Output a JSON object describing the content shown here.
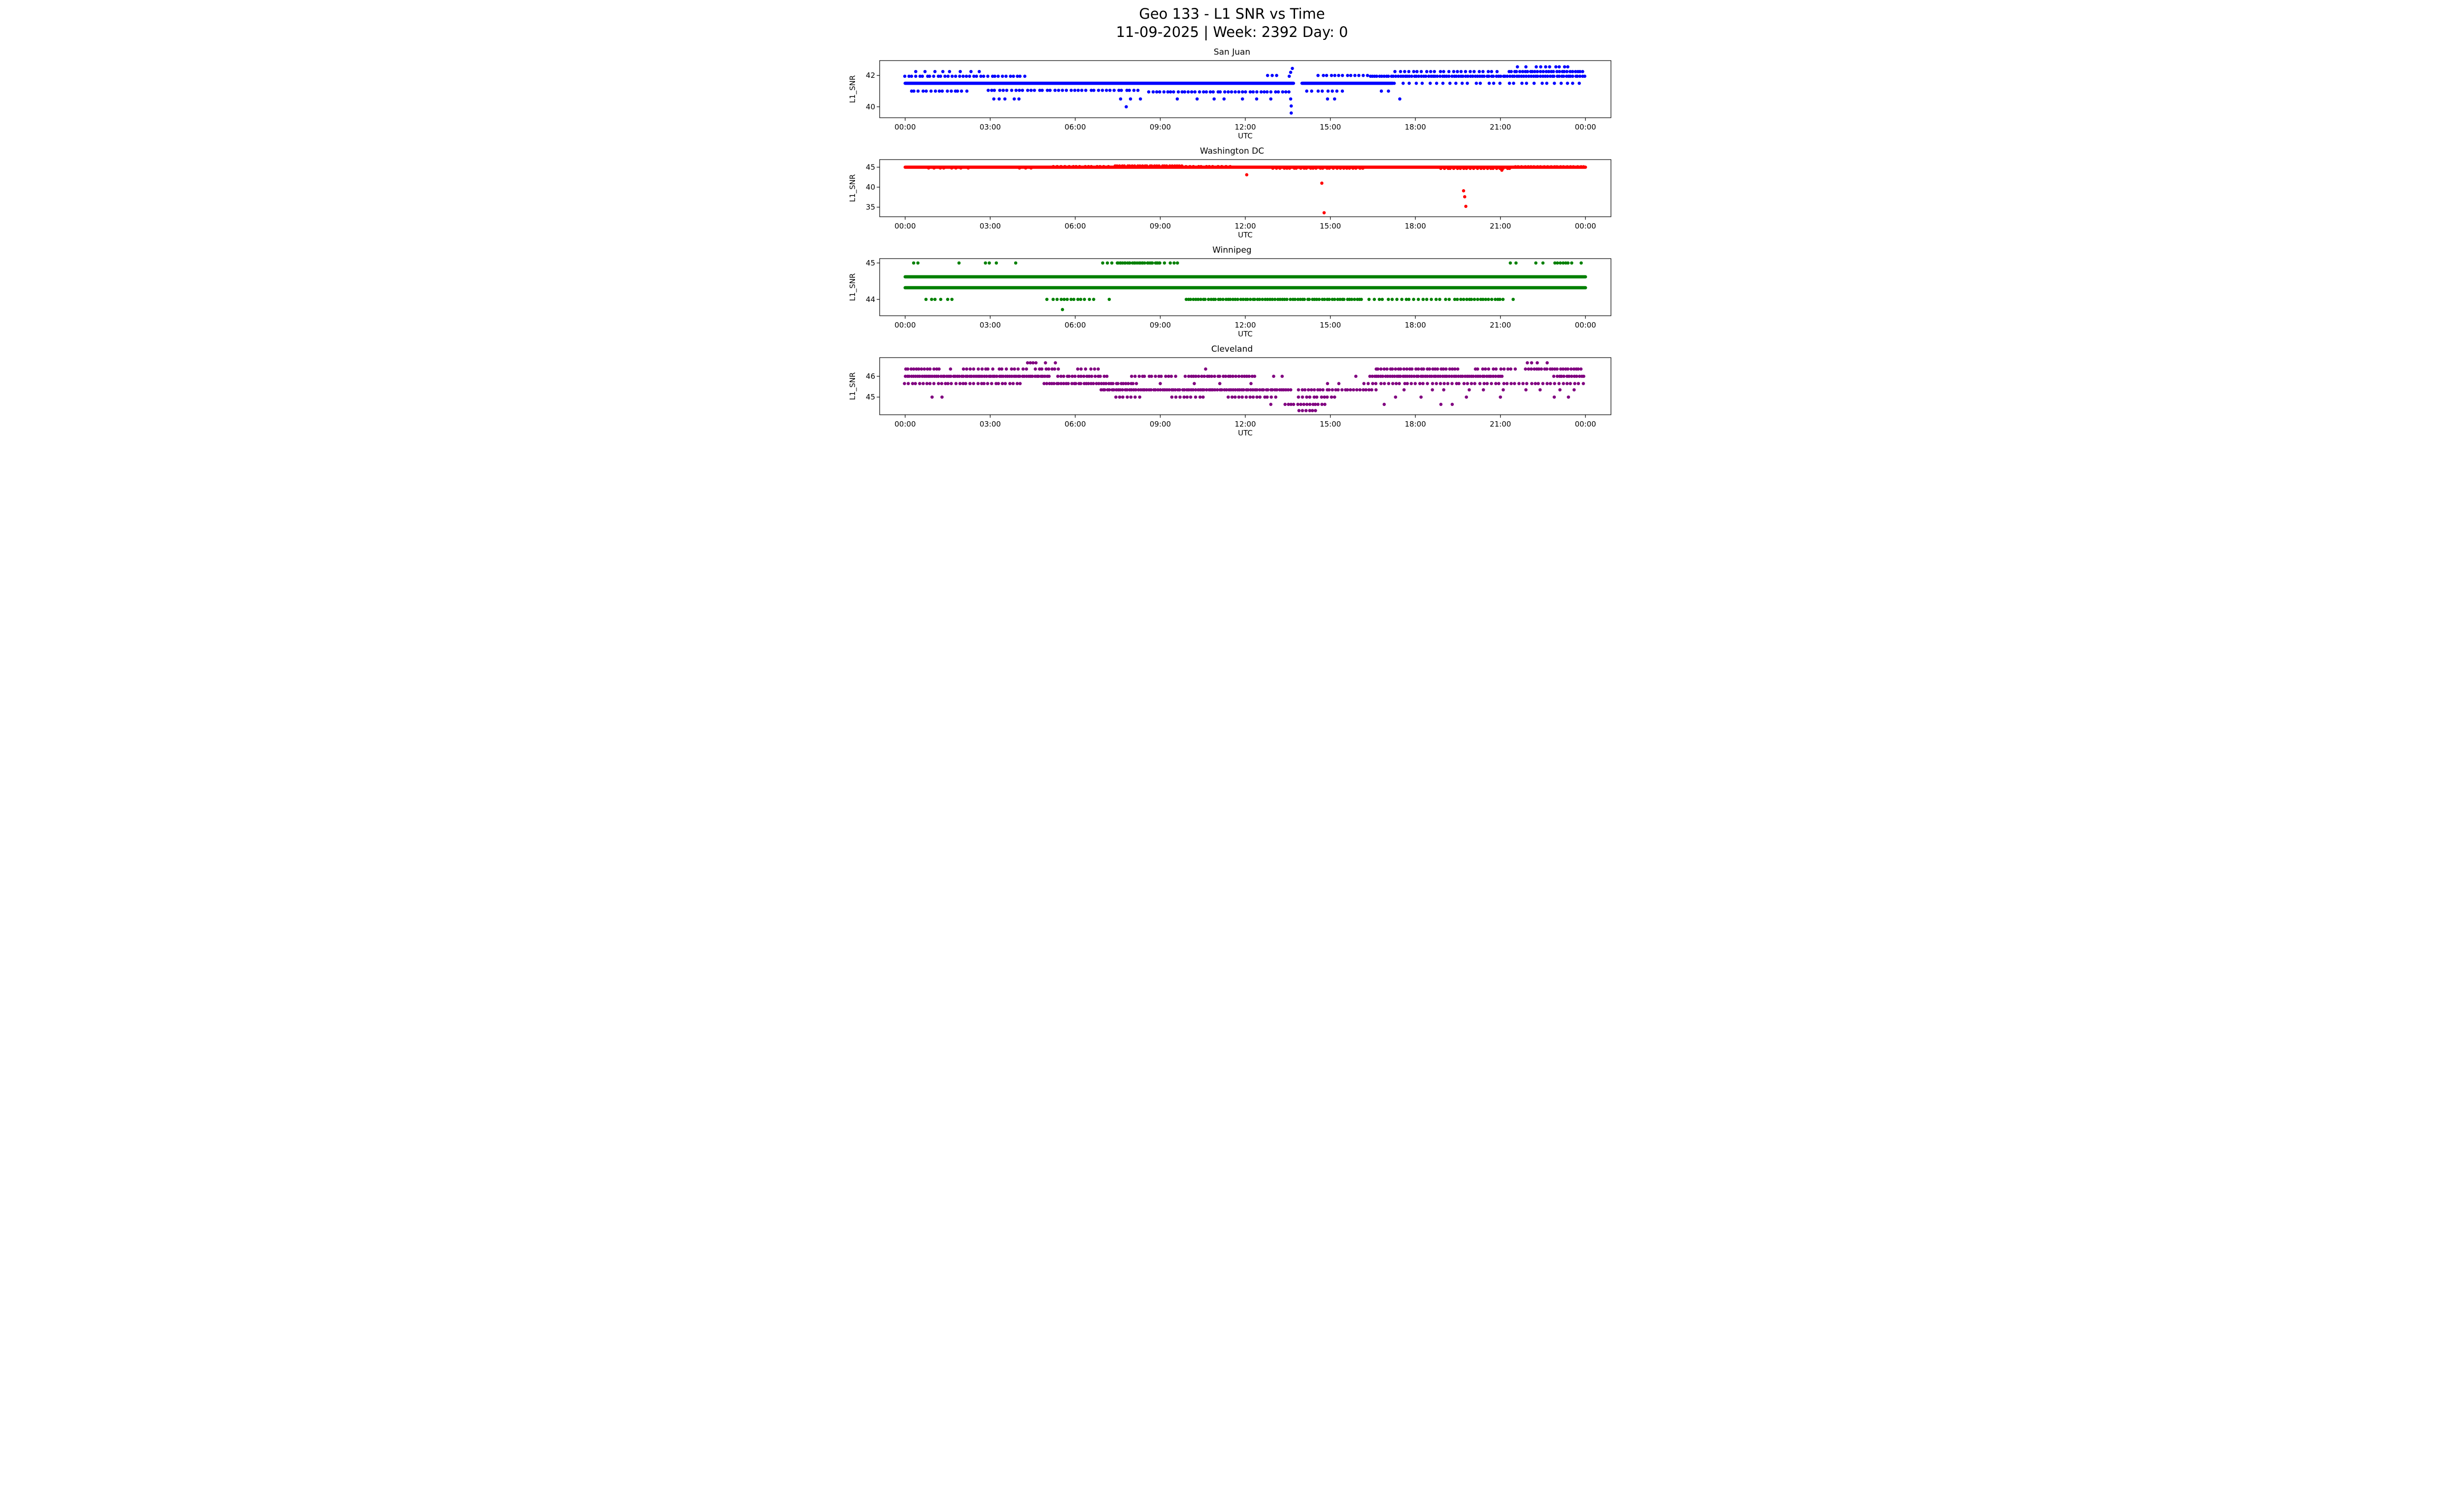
{
  "figure": {
    "title_line1": "Geo 133 - L1 SNR vs Time",
    "title_line2": "11-09-2025 | Week: 2392 Day: 0"
  },
  "chart_data": [
    {
      "type": "scatter",
      "title": "San Juan",
      "color": "#0000ff",
      "xlabel": "UTC",
      "ylabel": "L1_SNR",
      "xlim": [
        -0.9,
        24.9
      ],
      "ylim": [
        39.3,
        42.95
      ],
      "xticks": [
        0,
        3,
        6,
        9,
        12,
        15,
        18,
        21,
        24
      ],
      "xtick_labels": [
        "00:00",
        "03:00",
        "06:00",
        "09:00",
        "12:00",
        "15:00",
        "18:00",
        "21:00",
        "00:00"
      ],
      "yticks": [
        40,
        42
      ],
      "ytick_labels": [
        "40",
        "42"
      ],
      "segments": [
        [
          0.0,
          13.7,
          41.5,
          1
        ],
        [
          14.0,
          17.2,
          41.5,
          1
        ],
        [
          17.3,
          24.0,
          41.5,
          0.3
        ],
        [
          0.0,
          4.3,
          41.95,
          0.55
        ],
        [
          0.35,
          2.6,
          42.25,
          0.22
        ],
        [
          0.2,
          2.2,
          41.0,
          0.5
        ],
        [
          2.9,
          8.3,
          41.05,
          0.5
        ],
        [
          8.6,
          13.6,
          40.95,
          0.55
        ],
        [
          14.2,
          15.6,
          41.0,
          0.4
        ],
        [
          3.1,
          4.2,
          40.5,
          0.3
        ],
        [
          12.75,
          13.15,
          42.0,
          0.35
        ],
        [
          14.6,
          16.4,
          42.0,
          0.5
        ],
        [
          16.4,
          24.0,
          41.95,
          0.85
        ],
        [
          17.3,
          21.0,
          42.25,
          0.45
        ],
        [
          21.3,
          24.0,
          42.25,
          0.75
        ],
        [
          22.3,
          23.4,
          42.55,
          0.45
        ]
      ],
      "points": [
        [
          7.6,
          40.5
        ],
        [
          7.95,
          40.5
        ],
        [
          8.3,
          40.5
        ],
        [
          9.6,
          40.5
        ],
        [
          10.3,
          40.5
        ],
        [
          10.9,
          40.5
        ],
        [
          11.25,
          40.5
        ],
        [
          11.9,
          40.5
        ],
        [
          12.4,
          40.5
        ],
        [
          12.9,
          40.5
        ],
        [
          13.6,
          40.5
        ],
        [
          14.9,
          40.5
        ],
        [
          15.15,
          40.5
        ],
        [
          17.45,
          40.5
        ],
        [
          7.8,
          40.0
        ],
        [
          13.62,
          40.05
        ],
        [
          13.62,
          39.6
        ],
        [
          13.6,
          42.2
        ],
        [
          13.66,
          42.45
        ],
        [
          13.55,
          41.95
        ],
        [
          16.8,
          41.0
        ],
        [
          17.05,
          41.0
        ],
        [
          21.6,
          42.55
        ],
        [
          21.9,
          42.55
        ]
      ]
    },
    {
      "type": "scatter",
      "title": "Washington DC",
      "color": "#ff0000",
      "xlabel": "UTC",
      "ylabel": "L1_SNR",
      "xlim": [
        -0.9,
        24.9
      ],
      "ylim": [
        32.6,
        46.9
      ],
      "xticks": [
        0,
        3,
        6,
        9,
        12,
        15,
        18,
        21,
        24
      ],
      "xtick_labels": [
        "00:00",
        "03:00",
        "06:00",
        "09:00",
        "12:00",
        "15:00",
        "18:00",
        "21:00",
        "00:00"
      ],
      "yticks": [
        35,
        40,
        45
      ],
      "ytick_labels": [
        "35",
        "40",
        "45"
      ],
      "segments": [
        [
          0.0,
          24.0,
          45.0,
          1
        ],
        [
          7.4,
          9.8,
          45.3,
          0.8
        ],
        [
          5.2,
          7.2,
          45.15,
          0.5
        ],
        [
          9.9,
          11.5,
          45.15,
          0.5
        ],
        [
          13.0,
          16.2,
          44.75,
          0.6
        ],
        [
          18.9,
          21.4,
          44.7,
          0.6
        ],
        [
          0.8,
          2.3,
          44.8,
          0.35
        ],
        [
          4.0,
          4.6,
          44.8,
          0.3
        ],
        [
          21.5,
          24.0,
          45.1,
          0.6
        ]
      ],
      "points": [
        [
          12.05,
          43.1
        ],
        [
          14.7,
          41.0
        ],
        [
          14.78,
          33.6
        ],
        [
          19.7,
          39.1
        ],
        [
          19.74,
          37.6
        ],
        [
          19.78,
          35.2
        ],
        [
          21.05,
          44.25
        ]
      ]
    },
    {
      "type": "scatter",
      "title": "Winnipeg",
      "color": "#008000",
      "xlabel": "UTC",
      "ylabel": "L1_SNR",
      "xlim": [
        -0.9,
        24.9
      ],
      "ylim": [
        43.55,
        45.12
      ],
      "xticks": [
        0,
        3,
        6,
        9,
        12,
        15,
        18,
        21,
        24
      ],
      "xtick_labels": [
        "00:00",
        "03:00",
        "06:00",
        "09:00",
        "12:00",
        "15:00",
        "18:00",
        "21:00",
        "00:00"
      ],
      "yticks": [
        44,
        45
      ],
      "ytick_labels": [
        "44",
        "45"
      ],
      "segments": [
        [
          0.0,
          24.0,
          44.62,
          1
        ],
        [
          0.0,
          24.0,
          44.32,
          1
        ],
        [
          7.0,
          9.7,
          45.0,
          0.45
        ],
        [
          7.5,
          9.0,
          45.0,
          0.8
        ],
        [
          22.9,
          23.6,
          45.0,
          0.7
        ],
        [
          2.8,
          3.35,
          45.0,
          0.35
        ],
        [
          0.75,
          1.25,
          44.0,
          0.45
        ],
        [
          5.25,
          6.3,
          44.0,
          0.6
        ],
        [
          9.9,
          16.2,
          44.0,
          0.8
        ],
        [
          16.4,
          19.2,
          44.0,
          0.45
        ],
        [
          19.4,
          21.2,
          44.0,
          0.7
        ]
      ],
      "points": [
        [
          0.3,
          45.0
        ],
        [
          0.45,
          45.0
        ],
        [
          1.9,
          45.0
        ],
        [
          3.9,
          45.0
        ],
        [
          21.35,
          45.0
        ],
        [
          21.55,
          45.0
        ],
        [
          22.25,
          45.0
        ],
        [
          22.5,
          45.0
        ],
        [
          23.85,
          45.0
        ],
        [
          1.5,
          44.0
        ],
        [
          1.65,
          44.0
        ],
        [
          5.0,
          44.0
        ],
        [
          6.5,
          44.0
        ],
        [
          6.65,
          44.0
        ],
        [
          7.2,
          44.0
        ],
        [
          21.45,
          44.0
        ],
        [
          5.55,
          43.72
        ]
      ]
    },
    {
      "type": "scatter",
      "title": "Cleveland",
      "color": "#800080",
      "xlabel": "UTC",
      "ylabel": "L1_SNR",
      "xlim": [
        -0.9,
        24.9
      ],
      "ylim": [
        44.15,
        46.9
      ],
      "xticks": [
        0,
        3,
        6,
        9,
        12,
        15,
        18,
        21,
        24
      ],
      "xtick_labels": [
        "00:00",
        "03:00",
        "06:00",
        "09:00",
        "12:00",
        "15:00",
        "18:00",
        "21:00",
        "00:00"
      ],
      "yticks": [
        45,
        46
      ],
      "ytick_labels": [
        "45",
        "46"
      ],
      "segments": [
        [
          4.3,
          4.65,
          46.65,
          0.7
        ],
        [
          0.0,
          1.3,
          46.35,
          0.7
        ],
        [
          2.05,
          3.1,
          46.35,
          0.55
        ],
        [
          3.3,
          4.3,
          46.35,
          0.5
        ],
        [
          4.6,
          5.5,
          46.35,
          0.6
        ],
        [
          6.1,
          6.85,
          46.35,
          0.5
        ],
        [
          16.6,
          19.6,
          46.35,
          0.7
        ],
        [
          20.1,
          21.6,
          46.35,
          0.55
        ],
        [
          21.9,
          23.9,
          46.35,
          0.75
        ],
        [
          0.0,
          5.1,
          46.0,
          0.95
        ],
        [
          5.4,
          7.1,
          46.0,
          0.7
        ],
        [
          8.0,
          9.6,
          46.0,
          0.6
        ],
        [
          9.9,
          12.4,
          46.0,
          0.75
        ],
        [
          16.4,
          21.1,
          46.0,
          0.9
        ],
        [
          22.9,
          24.0,
          46.0,
          0.8
        ],
        [
          0.0,
          4.1,
          45.65,
          0.55
        ],
        [
          4.9,
          8.15,
          45.65,
          0.8
        ],
        [
          16.2,
          24.0,
          45.65,
          0.5
        ],
        [
          6.9,
          13.6,
          45.35,
          0.9
        ],
        [
          13.9,
          16.6,
          45.35,
          0.65
        ],
        [
          7.4,
          8.3,
          45.0,
          0.5
        ],
        [
          9.4,
          10.6,
          45.0,
          0.5
        ],
        [
          11.4,
          13.1,
          45.0,
          0.55
        ],
        [
          13.9,
          15.2,
          45.0,
          0.55
        ],
        [
          13.4,
          14.9,
          44.65,
          0.65
        ],
        [
          13.9,
          14.5,
          44.35,
          0.6
        ]
      ],
      "points": [
        [
          4.95,
          46.65
        ],
        [
          5.3,
          46.65
        ],
        [
          21.95,
          46.65
        ],
        [
          22.1,
          46.65
        ],
        [
          22.3,
          46.65
        ],
        [
          22.65,
          46.65
        ],
        [
          1.6,
          46.35
        ],
        [
          10.6,
          46.35
        ],
        [
          13.0,
          46.0
        ],
        [
          13.3,
          46.0
        ],
        [
          15.9,
          46.0
        ],
        [
          9.0,
          45.65
        ],
        [
          10.2,
          45.65
        ],
        [
          11.1,
          45.65
        ],
        [
          12.2,
          45.65
        ],
        [
          14.9,
          45.65
        ],
        [
          15.3,
          45.65
        ],
        [
          17.6,
          45.35
        ],
        [
          18.6,
          45.35
        ],
        [
          19.0,
          45.35
        ],
        [
          19.9,
          45.35
        ],
        [
          20.4,
          45.35
        ],
        [
          21.1,
          45.35
        ],
        [
          21.9,
          45.35
        ],
        [
          22.4,
          45.35
        ],
        [
          23.1,
          45.35
        ],
        [
          23.6,
          45.35
        ],
        [
          0.95,
          45.0
        ],
        [
          1.3,
          45.0
        ],
        [
          17.3,
          45.0
        ],
        [
          18.2,
          45.0
        ],
        [
          19.8,
          45.0
        ],
        [
          21.0,
          45.0
        ],
        [
          22.9,
          45.0
        ],
        [
          23.4,
          45.0
        ],
        [
          12.9,
          44.65
        ],
        [
          16.9,
          44.65
        ],
        [
          18.9,
          44.65
        ],
        [
          19.3,
          44.65
        ]
      ]
    }
  ]
}
